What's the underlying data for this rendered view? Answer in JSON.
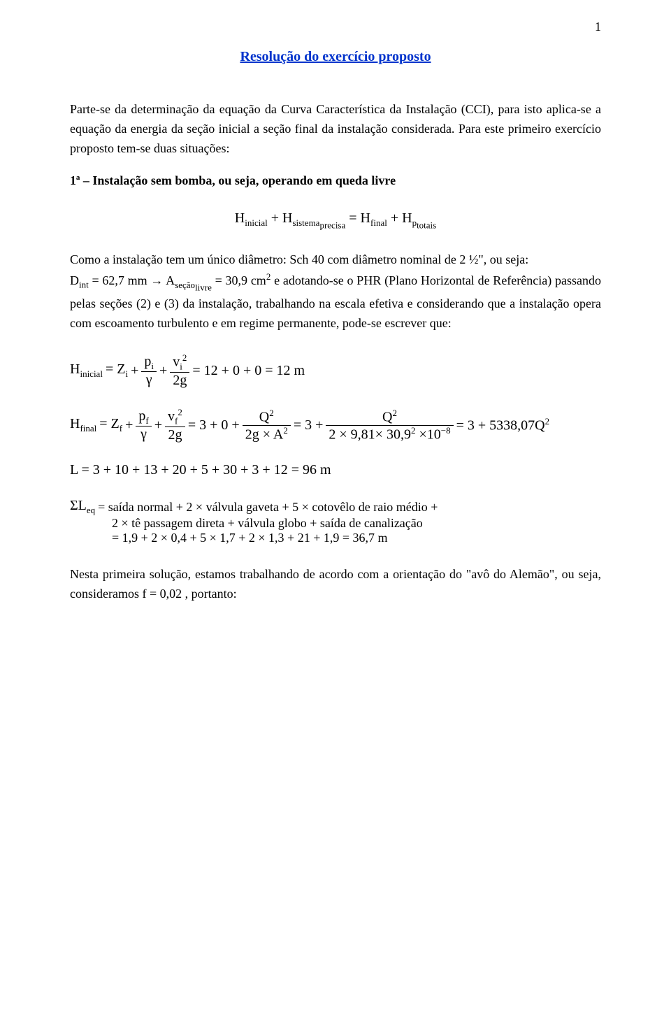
{
  "page_number": "1",
  "title": "Resolução do exercício proposto",
  "para1": "Parte-se da determinação da equação da Curva Característica da Instalação (CCI), para isto aplica-se a equação da energia da seção inicial a seção final da instalação considerada. Para este primeiro exercício proposto tem-se duas situações:",
  "case1": "1ª – Instalação sem bomba, ou seja, operando em queda livre",
  "eq1_lhs1": "H",
  "eq1_sub1": "inicial",
  "eq1_plus": " + ",
  "eq1_lhs2": "H",
  "eq1_sub2": "sistema",
  "eq1_sub2b": "precisa",
  "eq1_eq": " = ",
  "eq1_rhs1": "H",
  "eq1_rsub1": "final",
  "eq1_rhs2": "H",
  "eq1_rsub2": "p",
  "eq1_rsub2b": "totais",
  "para2a": "Como a instalação tem um único diâmetro: Sch 40 com diâmetro nominal de 2 ½\", ou seja: ",
  "eq2_left": "D",
  "eq2_sub_int": "int",
  "eq2_val1": " = 62,7 mm → A",
  "eq2_sub_secao": "seção",
  "eq2_sub_livre": "livre",
  "eq2_val2": " = 30,9 cm",
  "eq2_sup2": "2",
  "para2b": " e adotando-se o PHR (Plano Horizontal de Referência) passando pelas seções (2) e (3) da instalação, trabalhando na escala efetiva e considerando que a instalação opera com escoamento turbulento e em regime permanente, pode-se escrever que:",
  "eq3_H": "H",
  "eq3_sub": "inicial",
  "eq3_Z": " = Z",
  "eq3_i": "i",
  "eq3_plus": " + ",
  "eq3_frac1_num": "p",
  "eq3_frac1_num_sub": "i",
  "eq3_frac1_den": "γ",
  "eq3_frac2_num": "v",
  "eq3_frac2_num_sub": "i",
  "eq3_frac2_num_sup": "2",
  "eq3_frac2_den": "2g",
  "eq3_tail": " = 12 + 0 + 0 = 12 m",
  "eq4_H": "H",
  "eq4_sub": "final",
  "eq4_Z": " = Z",
  "eq4_f": "f",
  "eq4_frac1_num": "p",
  "eq4_frac1_num_sub": "f",
  "eq4_frac1_den": "γ",
  "eq4_frac2_num": "v",
  "eq4_frac2_num_sub": "f",
  "eq4_frac2_num_sup": "2",
  "eq4_frac2_den": "2g",
  "eq4_mid1": " = 3 + 0 + ",
  "eq4_frac3_num": "Q",
  "eq4_frac3_num_sup": "2",
  "eq4_frac3_den": "2g × A",
  "eq4_frac3_den_sup": "2",
  "eq4_mid2": " = 3 + ",
  "eq4_frac4_num": "Q",
  "eq4_frac4_num_sup": "2",
  "eq4_frac4_den": "2 × 9,81× 30,9",
  "eq4_frac4_den_sup": "2",
  "eq4_frac4_den2": " ×10",
  "eq4_frac4_den2_sup": "−8",
  "eq4_tail": " = 3 + 5338,07Q",
  "eq4_tail_sup": "2",
  "eq5": "L = 3 + 10 + 13 + 20 + 5 + 30 + 3 + 12 = 96 m",
  "eq6_sigma": "ΣL",
  "eq6_sub": "eq",
  "eq6_line1": " = saída normal + 2 × válvula gaveta + 5 × cotovêlo de raio médio +",
  "eq6_line2": "2 × tê passagem direta + válvula globo + saída de canalização",
  "eq6_line3": "= 1,9 + 2 × 0,4 + 5 × 1,7 + 2 × 1,3 + 21 + 1,9 = 36,7 m",
  "para3a": "Nesta primeira solução, estamos trabalhando de acordo com a orientação do \"avô do Alemão\", ou seja, consideramos ",
  "para3_eq": "f = 0,02",
  "para3b": " , portanto:"
}
